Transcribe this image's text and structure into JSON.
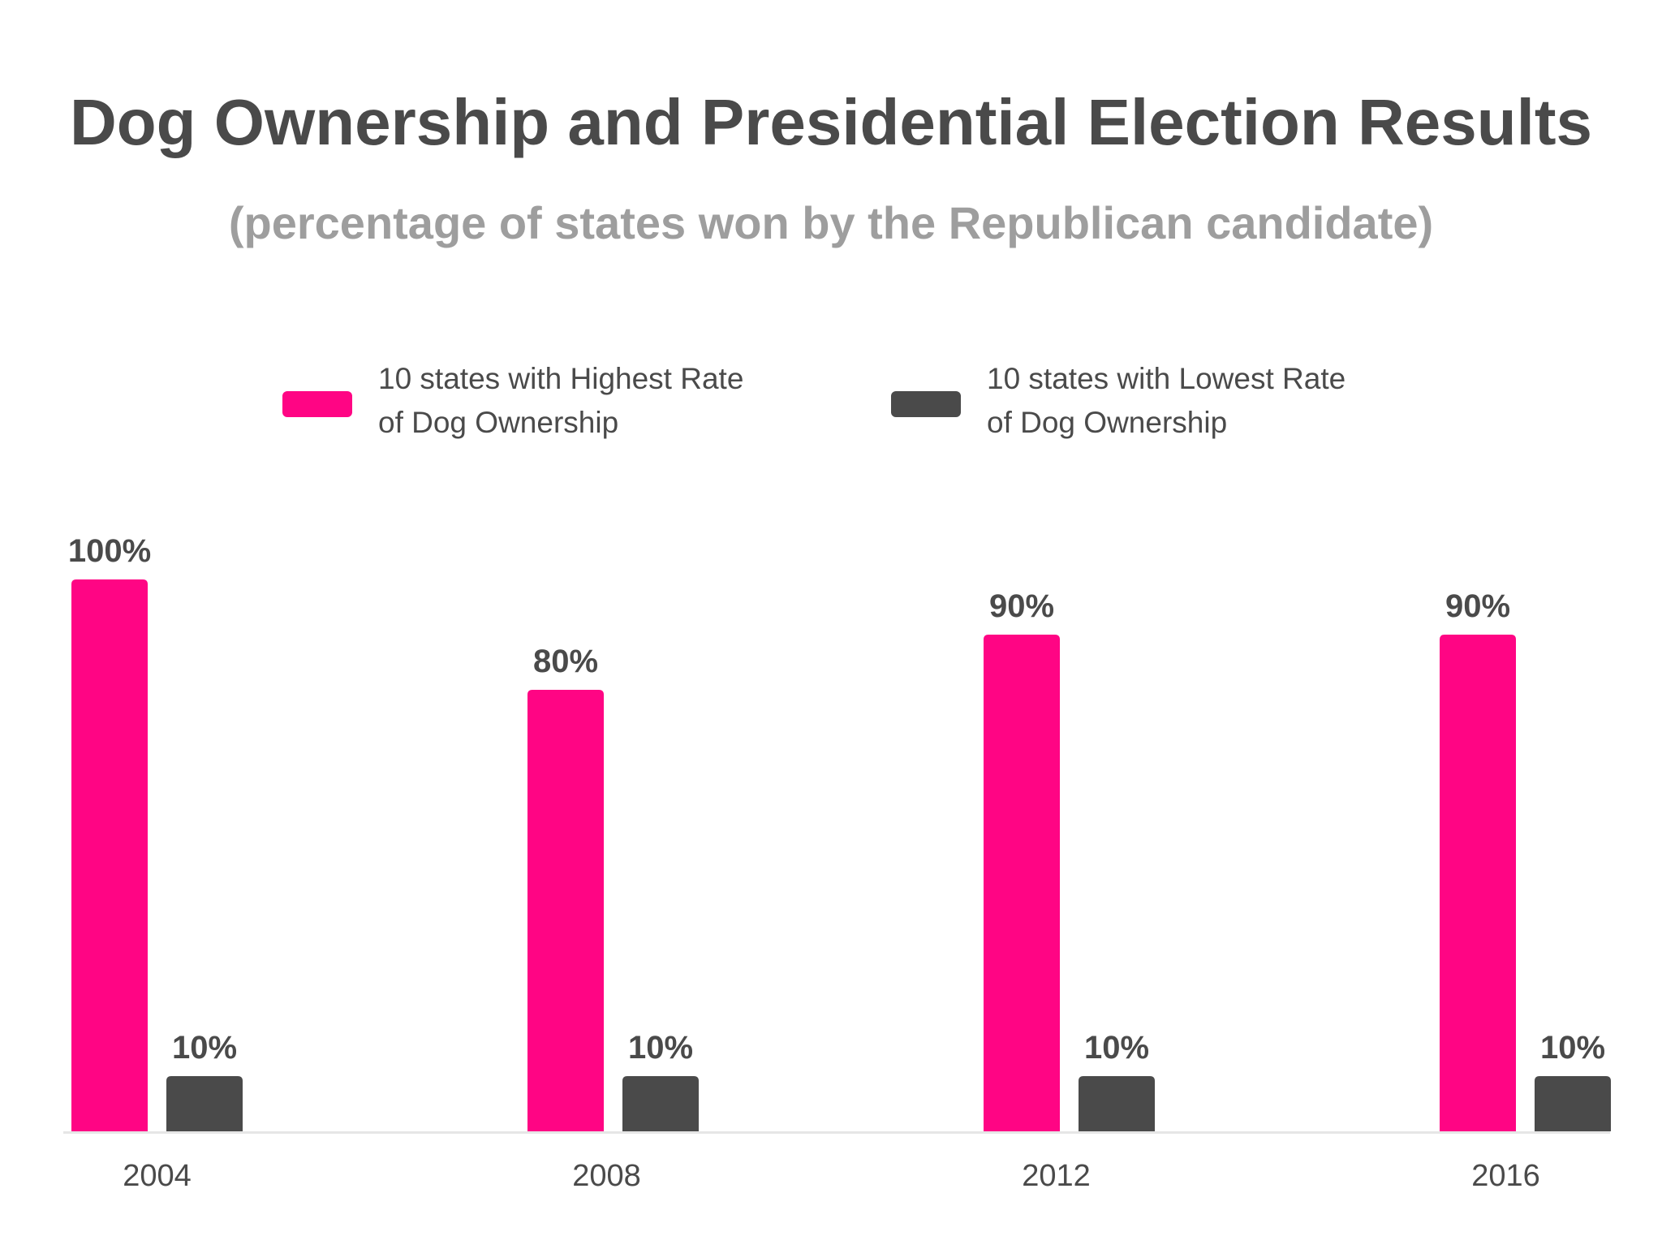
{
  "title": "Dog Ownership and Presidential Election Results",
  "subtitle": "(percentage of states won by the Republican candidate)",
  "colors": {
    "highest": "#ff0584",
    "lowest": "#4a4a4a",
    "text": "#4a4a4a",
    "subtitle": "#9e9e9e",
    "axis": "#e6e6e6"
  },
  "legend": {
    "placement": "top-center",
    "items": [
      {
        "label": "10 states with Highest Rate\nof Dog Ownership",
        "color": "#ff0584"
      },
      {
        "label": "10 states with Lowest Rate\nof Dog Ownership",
        "color": "#4a4a4a"
      }
    ]
  },
  "chart_data": {
    "type": "bar",
    "title": "Dog Ownership and Presidential Election Results",
    "subtitle": "(percentage of states won by the Republican candidate)",
    "categories": [
      "2004",
      "2008",
      "2012",
      "2016"
    ],
    "series": [
      {
        "name": "10 states with Highest Rate of Dog Ownership",
        "values": [
          100,
          80,
          90,
          90
        ],
        "labels": [
          "100%",
          "80%",
          "90%",
          "90%"
        ],
        "color": "#ff0584"
      },
      {
        "name": "10 states with Lowest Rate of Dog Ownership",
        "values": [
          10,
          10,
          10,
          10
        ],
        "labels": [
          "10%",
          "10%",
          "10%",
          "10%"
        ],
        "color": "#4a4a4a"
      }
    ],
    "ylim": [
      0,
      100
    ],
    "grid": false,
    "y_axis_visible": false,
    "legend_placement": "top-center"
  }
}
